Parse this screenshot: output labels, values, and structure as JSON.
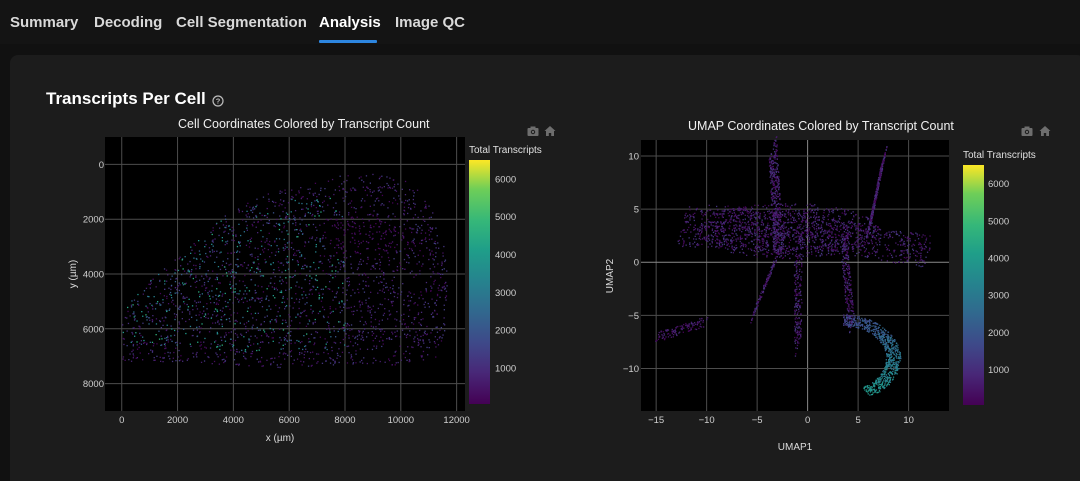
{
  "tabs": [
    {
      "label": "Summary",
      "active": false
    },
    {
      "label": "Decoding",
      "active": false
    },
    {
      "label": "Cell Segmentation",
      "active": false
    },
    {
      "label": "Analysis",
      "active": true
    },
    {
      "label": "Image QC",
      "active": false
    }
  ],
  "section": {
    "title": "Transcripts Per Cell",
    "help_icon": "question-circle-icon"
  },
  "modebar": {
    "icons": [
      "camera-icon",
      "home-icon"
    ]
  },
  "colors": {
    "accent": "#2d86e0",
    "background": "#111111",
    "panel": "#1c1c1c",
    "plot_bg": "#000000",
    "colorscale": "viridis"
  },
  "plots": [
    {
      "title": "Cell Coordinates Colored by Transcript Count",
      "chart_data": {
        "type": "scatter",
        "title": "Cell Coordinates Colored by Transcript Count",
        "xlabel": "x (µm)",
        "ylabel": "y (µm)",
        "x_ticks": [
          "0",
          "2000",
          "4000",
          "6000",
          "8000",
          "10000",
          "12000"
        ],
        "y_ticks": [
          "0",
          "2000",
          "4000",
          "6000",
          "8000"
        ],
        "xlim": [
          -600,
          12300
        ],
        "ylim": [
          9000,
          -1000
        ],
        "y_reversed": true,
        "grid": true,
        "colorbar": {
          "title": "Total Transcripts",
          "ticks": [
            "1000",
            "2000",
            "3000",
            "4000",
            "5000",
            "6000"
          ],
          "range": [
            50,
            6500
          ]
        }
      }
    },
    {
      "title": "UMAP Coordinates Colored by Transcript Count",
      "chart_data": {
        "type": "scatter",
        "title": "UMAP Coordinates Colored by Transcript Count",
        "xlabel": "UMAP1",
        "ylabel": "UMAP2",
        "x_ticks": [
          "−15",
          "−10",
          "−5",
          "0",
          "5",
          "10"
        ],
        "y_ticks": [
          "10",
          "5",
          "0",
          "−5",
          "−10"
        ],
        "xlim": [
          -16.5,
          14
        ],
        "ylim": [
          -14,
          11.5
        ],
        "grid": true,
        "colorbar": {
          "title": "Total Transcripts",
          "ticks": [
            "1000",
            "2000",
            "3000",
            "4000",
            "5000",
            "6000"
          ],
          "range": [
            50,
            6500
          ]
        }
      }
    }
  ]
}
